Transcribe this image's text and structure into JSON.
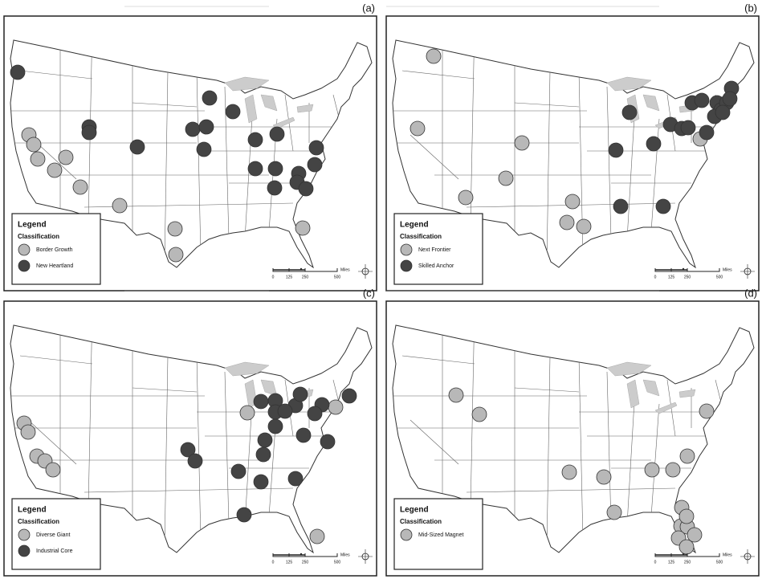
{
  "panels": [
    {
      "label": "(a)",
      "legend": {
        "title": "Legend",
        "subtitle": "Classification",
        "entries": [
          "Border Growth",
          "New Heartland"
        ]
      },
      "scale": {
        "ticks": [
          "0",
          "125",
          "250",
          "500"
        ],
        "unit": "Miles"
      }
    },
    {
      "label": "(b)",
      "legend": {
        "title": "Legend",
        "subtitle": "Classification",
        "entries": [
          "Next Frontier",
          "Skilled Anchor"
        ]
      },
      "scale": {
        "ticks": [
          "0",
          "125",
          "250",
          "500"
        ],
        "unit": "Miles"
      }
    },
    {
      "label": "(c)",
      "legend": {
        "title": "Legend",
        "subtitle": "Classification",
        "entries": [
          "Diverse Giant",
          "Industrial Core"
        ]
      },
      "scale": {
        "ticks": [
          "0",
          "125",
          "250",
          "500"
        ],
        "unit": "Miles"
      }
    },
    {
      "label": "(d)",
      "legend": {
        "title": "Legend",
        "subtitle": "Classification",
        "entries": [
          "Mid-Sized Magnet"
        ]
      },
      "scale": {
        "ticks": [
          "0",
          "125",
          "250",
          "500"
        ],
        "unit": "Miles"
      }
    }
  ]
}
